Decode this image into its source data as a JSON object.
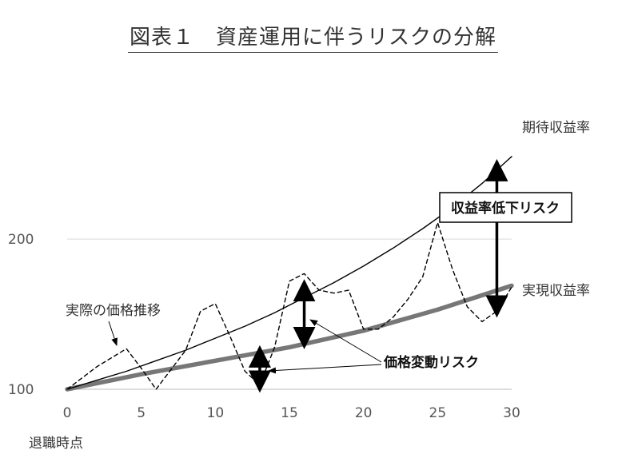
{
  "chart_data": {
    "type": "line",
    "title": "図表１　資産運用に伴うリスクの分解",
    "xlabel": "退職時点",
    "ylabel": "",
    "xlim": [
      0,
      30
    ],
    "ylim": [
      100,
      290
    ],
    "x_ticks": [
      "0",
      "5",
      "10",
      "15",
      "20",
      "25",
      "30"
    ],
    "y_ticks": [
      "100",
      "200"
    ],
    "grid": "horizontal",
    "series": [
      {
        "name": "期待収益率",
        "style": "thin-solid",
        "color": "#000000",
        "x": [
          0,
          2,
          4,
          6,
          8,
          10,
          12,
          14,
          16,
          18,
          20,
          22,
          24,
          26,
          28,
          30
        ],
        "y": [
          100,
          106,
          112,
          119,
          126,
          134,
          142,
          151,
          161,
          171,
          182,
          194,
          207,
          221,
          237,
          255
        ]
      },
      {
        "name": "実現収益率",
        "style": "thick-solid",
        "color": "#777777",
        "x": [
          0,
          5,
          10,
          15,
          20,
          25,
          30
        ],
        "y": [
          100,
          110,
          119,
          128,
          139,
          153,
          169
        ]
      },
      {
        "name": "実際の価格推移",
        "style": "dashed",
        "color": "#000000",
        "x": [
          0,
          2,
          4,
          5,
          6,
          8,
          9,
          10,
          11,
          12,
          13,
          14,
          15,
          16,
          17,
          18,
          19,
          20,
          21,
          22,
          23,
          24,
          25,
          26,
          27,
          28,
          29,
          30
        ],
        "y": [
          100,
          115,
          127,
          114,
          100,
          126,
          152,
          157,
          135,
          112,
          103,
          128,
          172,
          177,
          166,
          164,
          166,
          140,
          140,
          148,
          160,
          175,
          211,
          180,
          155,
          145,
          152,
          168
        ]
      }
    ],
    "annotations": {
      "actual_price": "実際の価格推移",
      "expected_rate": "期待収益率",
      "realized_rate": "実現収益率",
      "return_decline_risk": "収益率低下リスク",
      "price_fluctuation_risk": "価格変動リスク"
    },
    "arrows": [
      {
        "x": 29,
        "y_from": 153,
        "y_to": 248,
        "label": "収益率低下リスク"
      },
      {
        "x": 16,
        "y_from": 132,
        "y_to": 168,
        "label": "価格変動リスク"
      },
      {
        "x": 13,
        "y_from": 103,
        "y_to": 124,
        "label": "価格変動リスク"
      }
    ]
  }
}
